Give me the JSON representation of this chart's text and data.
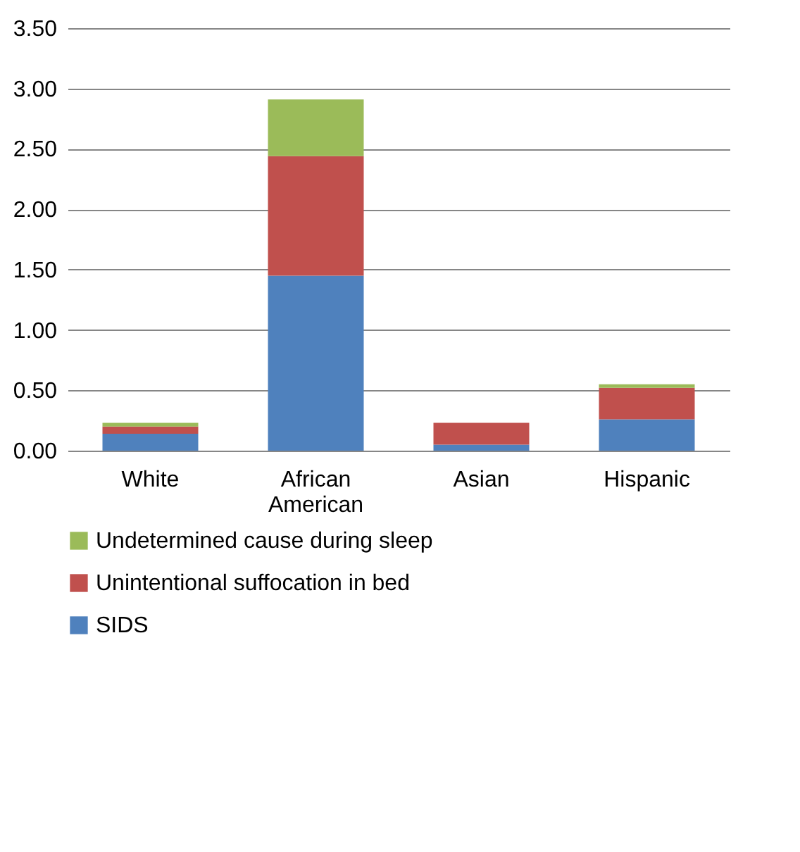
{
  "chart_data": {
    "type": "bar",
    "stacked": true,
    "categories": [
      "White",
      "African American",
      "Asian",
      "Hispanic"
    ],
    "series": [
      {
        "name": "SIDS",
        "color": "#4f81bd",
        "values": [
          0.14,
          1.45,
          0.05,
          0.26
        ]
      },
      {
        "name": "Unintentional suffocation in bed",
        "color": "#c0504d",
        "values": [
          0.06,
          0.99,
          0.18,
          0.26
        ]
      },
      {
        "name": "Undetermined cause during sleep",
        "color": "#9bbb59",
        "values": [
          0.03,
          0.47,
          0.0,
          0.03
        ]
      }
    ],
    "ylim": [
      0,
      3.5
    ],
    "yticks": [
      {
        "value": 0,
        "label": "0.00"
      },
      {
        "value": 0.5,
        "label": "0.50"
      },
      {
        "value": 1,
        "label": "1.00"
      },
      {
        "value": 1.5,
        "label": "1.50"
      },
      {
        "value": 2,
        "label": "2.00"
      },
      {
        "value": 2.5,
        "label": "2.50"
      },
      {
        "value": 3,
        "label": "3.00"
      },
      {
        "value": 3.5,
        "label": "3.50"
      }
    ],
    "grid": "y",
    "legend": "bottom"
  }
}
